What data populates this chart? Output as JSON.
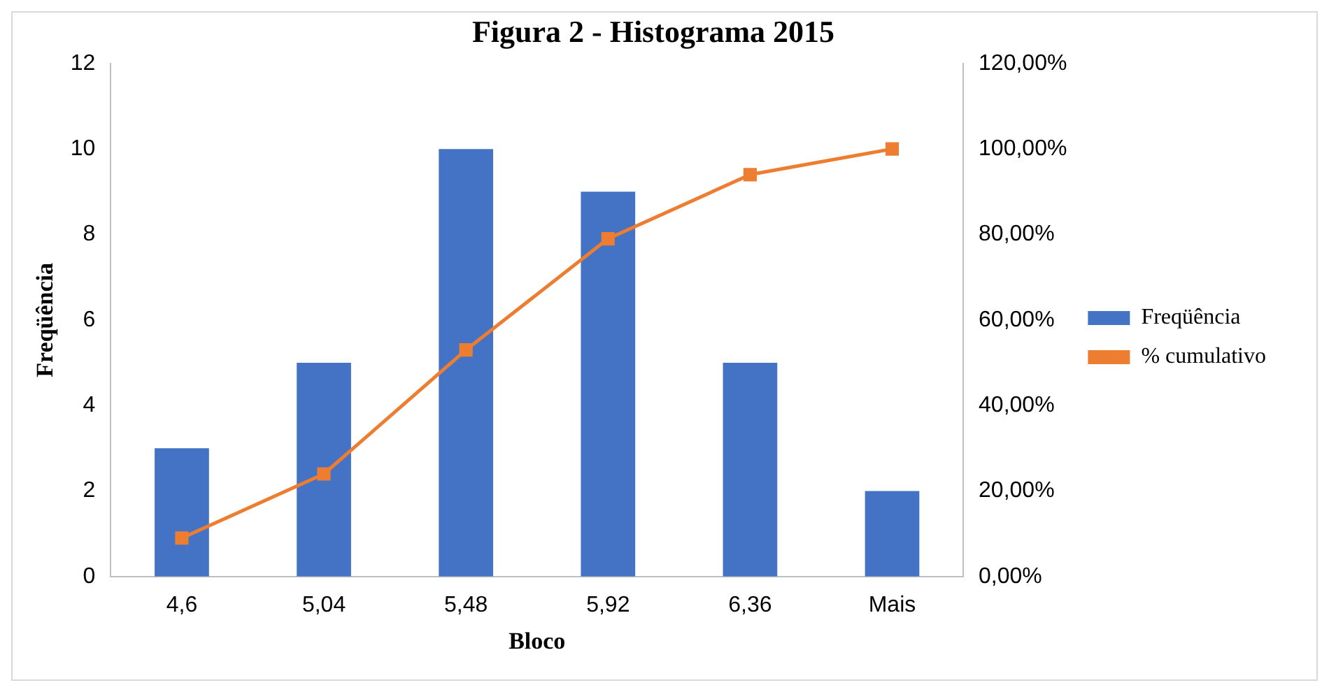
{
  "chart_data": {
    "type": "bar",
    "title": "Figura 2 - Histograma 2015",
    "xlabel": "Bloco",
    "ylabel": "Freqüência",
    "categories": [
      "4,6",
      "5,04",
      "5,48",
      "5,92",
      "6,36",
      "Mais"
    ],
    "series": [
      {
        "name": "Freqüência",
        "color": "#4472c4",
        "values": [
          3,
          5,
          10,
          9,
          5,
          2
        ]
      },
      {
        "name": "% cumulativo",
        "type": "line",
        "axis": "y2",
        "color": "#ed7d31",
        "values": [
          9,
          24,
          53,
          79,
          94,
          100
        ]
      }
    ],
    "ylim": [
      0,
      12
    ],
    "yticks": [
      0,
      2,
      4,
      6,
      8,
      10,
      12
    ],
    "y2lim": [
      0,
      120
    ],
    "y2ticks": [
      {
        "value": 0,
        "label": "0,00%"
      },
      {
        "value": 20,
        "label": "20,00%"
      },
      {
        "value": 40,
        "label": "40,00%"
      },
      {
        "value": 60,
        "label": "60,00%"
      },
      {
        "value": 80,
        "label": "80,00%"
      },
      {
        "value": 100,
        "label": "100,00%"
      },
      {
        "value": 120,
        "label": "120,00%"
      }
    ],
    "grid": false,
    "legend": "right",
    "marker": "square",
    "line_style": "solid"
  }
}
